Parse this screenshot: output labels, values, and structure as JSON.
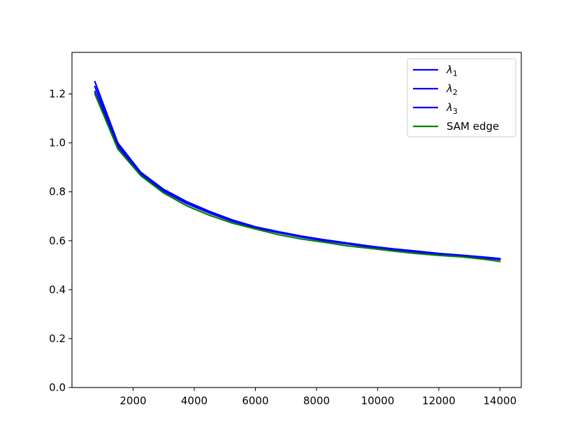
{
  "chart_data": {
    "type": "line",
    "title": "",
    "xlabel": "",
    "ylabel": "",
    "xlim": [
      0,
      14700
    ],
    "ylim": [
      0.0,
      1.37
    ],
    "x_ticks": [
      2000,
      4000,
      6000,
      8000,
      10000,
      12000,
      14000
    ],
    "y_ticks": [
      0.0,
      0.2,
      0.4,
      0.6,
      0.8,
      1.0,
      1.2
    ],
    "x_tick_labels": [
      "2000",
      "4000",
      "6000",
      "8000",
      "10000",
      "12000",
      "14000"
    ],
    "y_tick_labels": [
      "0.0",
      "0.2",
      "0.4",
      "0.6",
      "0.8",
      "1.0",
      "1.2"
    ],
    "grid": false,
    "legend_position": "top-right",
    "x": [
      750,
      1500,
      2250,
      3000,
      3750,
      4500,
      5250,
      6000,
      6750,
      7500,
      8250,
      9000,
      9750,
      10500,
      11250,
      12000,
      12750,
      13500,
      14000
    ],
    "series": [
      {
        "name": "λ1",
        "label_main": "λ",
        "label_sub": "1",
        "color": "#0000ff",
        "values": [
          1.25,
          1.0,
          0.88,
          0.81,
          0.76,
          0.72,
          0.685,
          0.657,
          0.637,
          0.619,
          0.604,
          0.591,
          0.578,
          0.567,
          0.558,
          0.548,
          0.541,
          0.533,
          0.527
        ]
      },
      {
        "name": "λ2",
        "label_main": "λ",
        "label_sub": "2",
        "color": "#0000ff",
        "values": [
          1.23,
          0.993,
          0.877,
          0.806,
          0.756,
          0.716,
          0.682,
          0.655,
          0.635,
          0.617,
          0.602,
          0.589,
          0.576,
          0.565,
          0.556,
          0.546,
          0.539,
          0.531,
          0.525
        ]
      },
      {
        "name": "λ3",
        "label_main": "λ",
        "label_sub": "3",
        "color": "#0000ff",
        "values": [
          1.21,
          0.985,
          0.873,
          0.802,
          0.752,
          0.713,
          0.679,
          0.653,
          0.633,
          0.615,
          0.6,
          0.587,
          0.574,
          0.563,
          0.554,
          0.544,
          0.537,
          0.529,
          0.523
        ]
      },
      {
        "name": "SAM edge",
        "label_main": "SAM edge",
        "label_sub": "",
        "color": "#008000",
        "values": [
          1.2,
          0.975,
          0.866,
          0.795,
          0.743,
          0.704,
          0.672,
          0.648,
          0.625,
          0.607,
          0.594,
          0.579,
          0.569,
          0.558,
          0.548,
          0.54,
          0.534,
          0.524,
          0.515
        ]
      }
    ]
  }
}
